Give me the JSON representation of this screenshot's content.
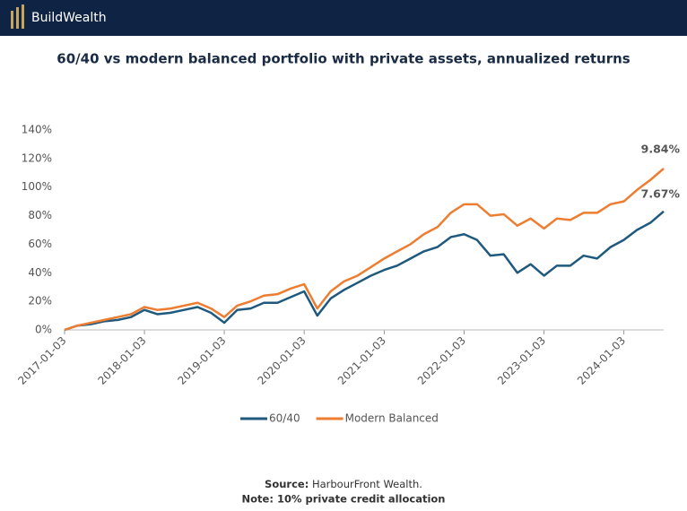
{
  "header": {
    "brand": "BuildWealth"
  },
  "chart_data": {
    "type": "line",
    "title": "60/40 vs modern balanced portfolio with private assets, annualized returns",
    "x": [
      "2017-01-03",
      "2017-03-03",
      "2017-05-03",
      "2017-07-03",
      "2017-09-03",
      "2017-11-03",
      "2018-01-03",
      "2018-03-03",
      "2018-05-03",
      "2018-07-03",
      "2018-09-03",
      "2018-11-03",
      "2019-01-03",
      "2019-03-03",
      "2019-05-03",
      "2019-07-03",
      "2019-09-03",
      "2019-11-03",
      "2020-01-03",
      "2020-03-03",
      "2020-05-03",
      "2020-07-03",
      "2020-09-03",
      "2020-11-03",
      "2021-01-03",
      "2021-03-03",
      "2021-05-03",
      "2021-07-03",
      "2021-09-03",
      "2021-11-03",
      "2022-01-03",
      "2022-03-03",
      "2022-05-03",
      "2022-07-03",
      "2022-09-03",
      "2022-11-03",
      "2023-01-03",
      "2023-03-03",
      "2023-05-03",
      "2023-07-03",
      "2023-09-03",
      "2023-11-03",
      "2024-01-03",
      "2024-03-03",
      "2024-05-03",
      "2024-07-03"
    ],
    "series": [
      {
        "name": "60/40",
        "color": "#1f5a7e",
        "values": [
          0,
          3,
          4,
          6,
          7,
          9,
          14,
          11,
          12,
          14,
          16,
          12,
          5,
          14,
          15,
          19,
          19,
          23,
          27,
          10,
          22,
          28,
          33,
          38,
          42,
          45,
          50,
          55,
          58,
          65,
          67,
          63,
          52,
          53,
          40,
          46,
          38,
          45,
          45,
          52,
          50,
          58,
          63,
          70,
          75,
          83
        ]
      },
      {
        "name": "Modern Balanced",
        "color": "#ed7d31",
        "values": [
          0,
          3,
          5,
          7,
          9,
          11,
          16,
          14,
          15,
          17,
          19,
          15,
          9,
          17,
          20,
          24,
          25,
          29,
          32,
          15,
          27,
          34,
          38,
          44,
          50,
          55,
          60,
          67,
          72,
          82,
          88,
          88,
          80,
          81,
          73,
          78,
          71,
          78,
          77,
          82,
          82,
          88,
          90,
          98,
          105,
          113
        ]
      }
    ],
    "xlim": [
      "2017-01-03",
      "2024-07-03"
    ],
    "xticks": [
      "2017-01-03",
      "2018-01-03",
      "2019-01-03",
      "2020-01-03",
      "2021-01-03",
      "2022-01-03",
      "2023-01-03",
      "2024-01-03"
    ],
    "ylim": [
      0,
      140
    ],
    "yticks": [
      {
        "value": 0,
        "label": "0%"
      },
      {
        "value": 20,
        "label": "20%"
      },
      {
        "value": 40,
        "label": "40%"
      },
      {
        "value": 60,
        "label": "60%"
      },
      {
        "value": 80,
        "label": "80%"
      },
      {
        "value": 100,
        "label": "100%"
      },
      {
        "value": 120,
        "label": "120%"
      },
      {
        "value": 140,
        "label": "140%"
      }
    ],
    "annotations": [
      "9.84%",
      "7.67%"
    ]
  },
  "footer": {
    "source_label": "Source:",
    "source": "HarbourFront Wealth.",
    "note": "Note: 10% private credit allocation"
  }
}
